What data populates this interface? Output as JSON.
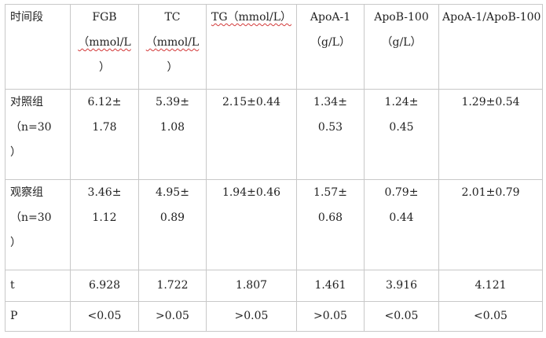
{
  "table": {
    "header": [
      {
        "lines": [
          "时间段"
        ],
        "squiggle": []
      },
      {
        "lines": [
          "FGB",
          "（mmol/L",
          "）"
        ],
        "squiggle": [
          1
        ]
      },
      {
        "lines": [
          "TC",
          "（mmol/L",
          "）"
        ],
        "squiggle": [
          1
        ]
      },
      {
        "lines": [
          "TG（mmol/L）"
        ],
        "squiggle": [
          0
        ]
      },
      {
        "lines": [
          "ApoA-1",
          "（g/L）"
        ],
        "squiggle": []
      },
      {
        "lines": [
          "ApoB-100",
          "（g/L）"
        ],
        "squiggle": []
      },
      {
        "lines": [
          "ApoA-1/ApoB-100"
        ],
        "squiggle": []
      }
    ],
    "rows": [
      {
        "name": "control",
        "label_lines": [
          "对照组",
          "（n=30",
          "）"
        ],
        "cells": [
          [
            "6.12±",
            "1.78"
          ],
          [
            "5.39±",
            "1.08"
          ],
          [
            "2.15±0.44"
          ],
          [
            "1.34±",
            "0.53"
          ],
          [
            "1.24±",
            "0.45"
          ],
          [
            "1.29±0.54"
          ]
        ]
      },
      {
        "name": "observation",
        "label_lines": [
          "观察组",
          "（n=30",
          "）"
        ],
        "cells": [
          [
            "3.46±",
            "1.12"
          ],
          [
            "4.95±",
            "0.89"
          ],
          [
            "1.94±0.46"
          ],
          [
            "1.57±",
            "0.68"
          ],
          [
            "0.79±",
            "0.44"
          ],
          [
            "2.01±0.79"
          ]
        ]
      }
    ],
    "stats": [
      {
        "name": "t",
        "label": "t",
        "values": [
          "6.928",
          "1.722",
          "1.807",
          "1.461",
          "3.916",
          "4.121"
        ]
      },
      {
        "name": "p",
        "label": "P",
        "values": [
          "<0.05",
          ">0.05",
          ">0.05",
          ">0.05",
          "<0.05",
          "<0.05"
        ]
      }
    ]
  }
}
